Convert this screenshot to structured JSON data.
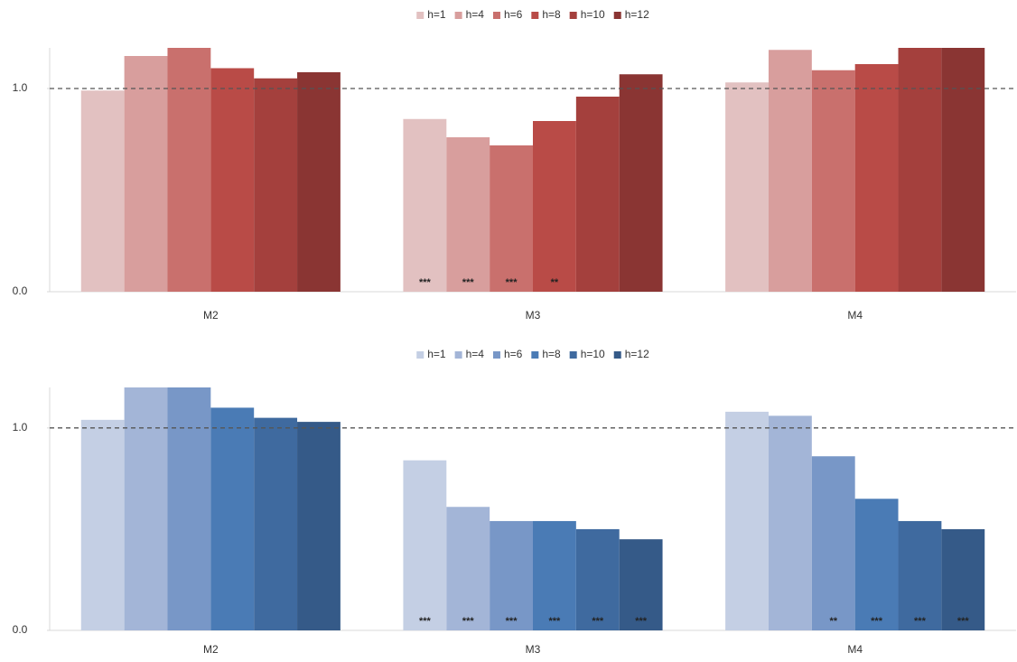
{
  "chart_data": [
    {
      "type": "bar",
      "categories": [
        "M2",
        "M3",
        "M4"
      ],
      "series": [
        {
          "name": "h=1",
          "color": "#e2c1c1",
          "values": [
            0.99,
            0.85,
            1.03
          ],
          "significance": [
            null,
            "***",
            null
          ]
        },
        {
          "name": "h=4",
          "color": "#d89e9d",
          "values": [
            1.16,
            0.76,
            1.19
          ],
          "significance": [
            null,
            "***",
            null
          ]
        },
        {
          "name": "h=6",
          "color": "#c9706d",
          "values": [
            1.2,
            0.72,
            1.09
          ],
          "significance": [
            null,
            "***",
            null
          ]
        },
        {
          "name": "h=8",
          "color": "#b94b47",
          "values": [
            1.1,
            0.84,
            1.12
          ],
          "significance": [
            null,
            "**",
            null
          ]
        },
        {
          "name": "h=10",
          "color": "#a4403d",
          "values": [
            1.05,
            0.96,
            1.2
          ],
          "significance": [
            null,
            null,
            null
          ]
        },
        {
          "name": "h=12",
          "color": "#8a3533",
          "values": [
            1.08,
            1.07,
            1.2
          ],
          "significance": [
            null,
            null,
            null
          ]
        }
      ],
      "ylim": [
        0,
        1.2
      ],
      "yticks": [
        {
          "value": 0,
          "label": "0.0"
        },
        {
          "value": 1,
          "label": "1.0"
        }
      ],
      "reference_line": 1,
      "legend": "top"
    },
    {
      "type": "bar",
      "categories": [
        "M2",
        "M3",
        "M4"
      ],
      "series": [
        {
          "name": "h=1",
          "color": "#c4cfe4",
          "values": [
            1.04,
            0.84,
            1.08
          ],
          "significance": [
            null,
            "***",
            null
          ]
        },
        {
          "name": "h=4",
          "color": "#a3b5d7",
          "values": [
            1.2,
            0.61,
            1.06
          ],
          "significance": [
            null,
            "***",
            null
          ]
        },
        {
          "name": "h=6",
          "color": "#7897c7",
          "values": [
            1.2,
            0.54,
            0.86
          ],
          "significance": [
            null,
            "***",
            "**"
          ]
        },
        {
          "name": "h=8",
          "color": "#4a7bb5",
          "values": [
            1.1,
            0.54,
            0.65
          ],
          "significance": [
            null,
            "***",
            "***"
          ]
        },
        {
          "name": "h=10",
          "color": "#3f6a9f",
          "values": [
            1.05,
            0.5,
            0.54
          ],
          "significance": [
            null,
            "***",
            "***"
          ]
        },
        {
          "name": "h=12",
          "color": "#355a88",
          "values": [
            1.03,
            0.45,
            0.5
          ],
          "significance": [
            null,
            "***",
            "***"
          ]
        }
      ],
      "ylim": [
        0,
        1.2
      ],
      "yticks": [
        {
          "value": 0,
          "label": "0.0"
        },
        {
          "value": 1,
          "label": "1.0"
        }
      ],
      "reference_line": 1,
      "legend": "top"
    }
  ]
}
